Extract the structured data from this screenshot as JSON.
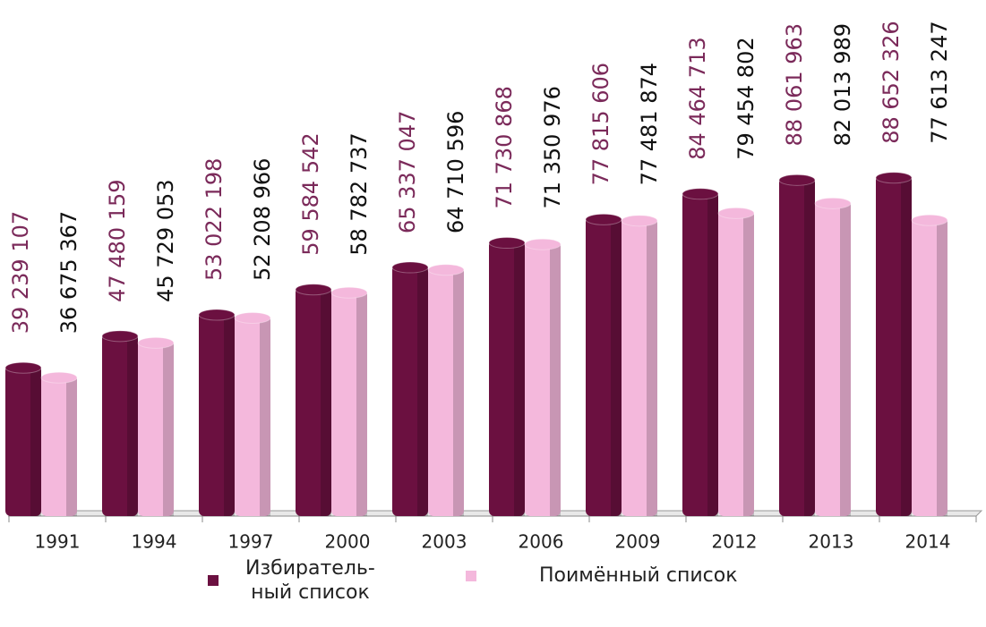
{
  "chart_data": {
    "type": "bar",
    "categories": [
      "1991",
      "1994",
      "1997",
      "2000",
      "2003",
      "2006",
      "2009",
      "2012",
      "2013",
      "2014"
    ],
    "series": [
      {
        "name": "Избиратель-\nный список",
        "color": "#6b1040",
        "label_color": "#7b2a5a",
        "values": [
          39239107,
          47480159,
          53022198,
          59584542,
          65337047,
          71730868,
          77815606,
          84464713,
          88061963,
          88652326
        ],
        "value_labels": [
          "39 239 107",
          "47 480 159",
          "53 022 198",
          "59 584 542",
          "65 337 047",
          "71 730 868",
          "77 815 606",
          "84 464 713",
          "88 061 963",
          "88 652 326"
        ]
      },
      {
        "name": "Поимённый список",
        "color": "#f4b8dc",
        "label_color": "#111111",
        "values": [
          36675367,
          45729053,
          52208966,
          58782737,
          64710596,
          71350976,
          77481874,
          79454802,
          82013989,
          77613247
        ],
        "value_labels": [
          "36 675 367",
          "45 729 053",
          "52 208 966",
          "58 782 737",
          "64 710 596",
          "71 350 976",
          "77 481 874",
          "79 454 802",
          "82 013 989",
          "77 613 247"
        ]
      }
    ],
    "ylim": [
      0,
      100000000
    ]
  }
}
